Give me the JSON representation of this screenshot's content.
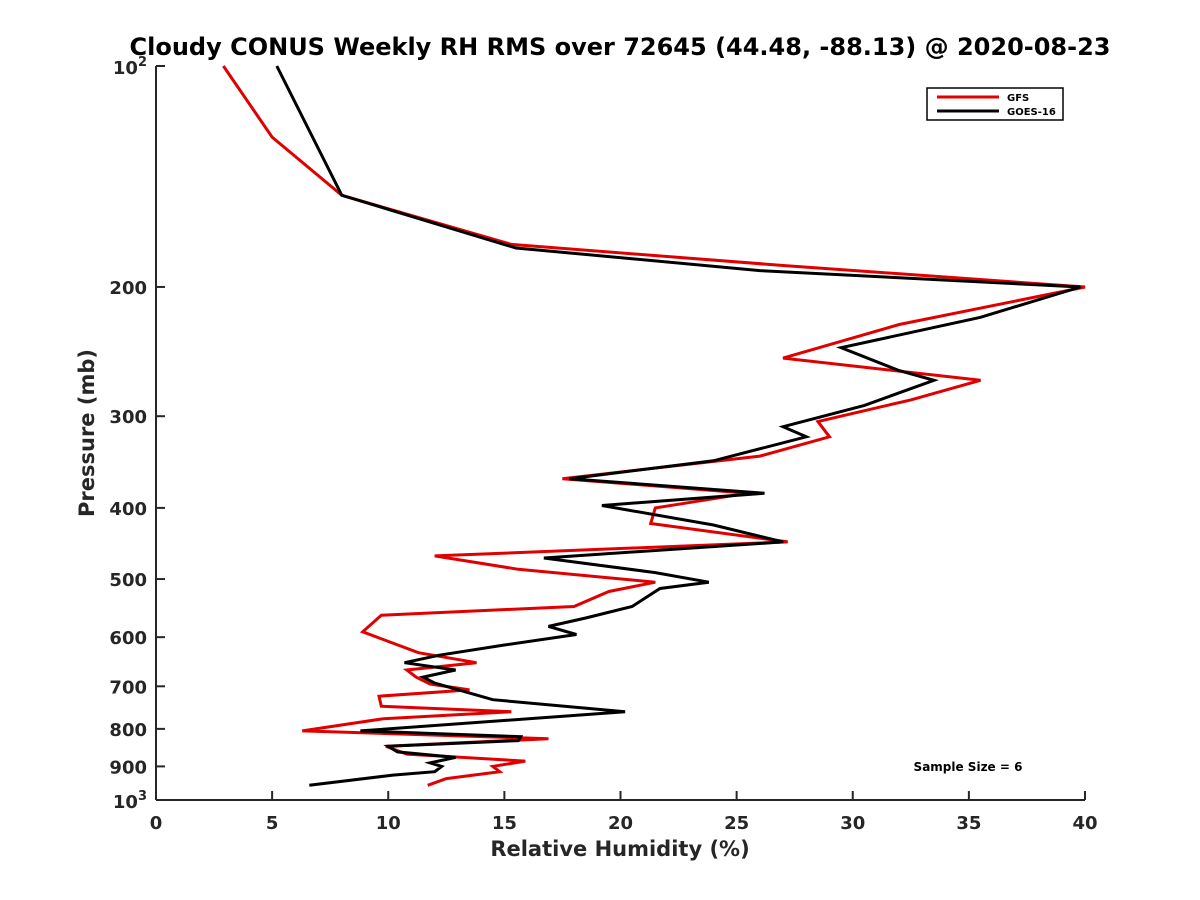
{
  "chart_data": {
    "type": "line",
    "title": "Cloudy CONUS Weekly RH RMS over 72645 (44.48, -88.13) @ 2020-08-23",
    "xlabel": "Relative Humidity (%)",
    "ylabel": "Pressure (mb)",
    "xlim": [
      0,
      40
    ],
    "ylim": [
      100,
      1000
    ],
    "y_scale": "log",
    "y_reversed": true,
    "x_ticks": [
      0,
      5,
      10,
      15,
      20,
      25,
      30,
      35,
      40
    ],
    "y_ticks": [
      {
        "value": 100,
        "base": "10",
        "exp": "2"
      },
      {
        "value": 200,
        "label": "200"
      },
      {
        "value": 300,
        "label": "300"
      },
      {
        "value": 400,
        "label": "400"
      },
      {
        "value": 500,
        "label": "500"
      },
      {
        "value": 600,
        "label": "600"
      },
      {
        "value": 700,
        "label": "700"
      },
      {
        "value": 800,
        "label": "800"
      },
      {
        "value": 900,
        "label": "900"
      },
      {
        "value": 1000,
        "base": "10",
        "exp": "3"
      }
    ],
    "grid": false,
    "legend_position": "top-right",
    "series": [
      {
        "name": "GFS",
        "color": "#e00000",
        "points": [
          [
            2.9,
            100
          ],
          [
            5.0,
            125
          ],
          [
            8.0,
            150
          ],
          [
            15.3,
            175
          ],
          [
            27.0,
            187
          ],
          [
            40.0,
            200
          ],
          [
            32.0,
            225
          ],
          [
            27.0,
            250
          ],
          [
            35.5,
            268
          ],
          [
            32.5,
            285
          ],
          [
            28.5,
            305
          ],
          [
            29.0,
            320
          ],
          [
            26.0,
            340
          ],
          [
            17.5,
            365
          ],
          [
            25.5,
            382
          ],
          [
            21.5,
            400
          ],
          [
            21.3,
            420
          ],
          [
            27.2,
            445
          ],
          [
            12.0,
            465
          ],
          [
            15.6,
            485
          ],
          [
            21.5,
            505
          ],
          [
            19.5,
            520
          ],
          [
            18.0,
            545
          ],
          [
            9.7,
            560
          ],
          [
            8.9,
            590
          ],
          [
            11.3,
            630
          ],
          [
            13.8,
            650
          ],
          [
            10.8,
            665
          ],
          [
            11.2,
            680
          ],
          [
            11.8,
            695
          ],
          [
            13.5,
            708
          ],
          [
            9.6,
            722
          ],
          [
            9.7,
            745
          ],
          [
            15.3,
            758
          ],
          [
            9.8,
            775
          ],
          [
            6.3,
            805
          ],
          [
            16.9,
            825
          ],
          [
            9.9,
            845
          ],
          [
            10.8,
            866
          ],
          [
            15.9,
            885
          ],
          [
            14.5,
            900
          ],
          [
            14.8,
            915
          ],
          [
            12.5,
            935
          ],
          [
            11.7,
            955
          ]
        ]
      },
      {
        "name": "GOES-16",
        "color": "#000000",
        "points": [
          [
            5.2,
            100
          ],
          [
            8.0,
            150
          ],
          [
            15.5,
            177
          ],
          [
            26.0,
            190
          ],
          [
            39.8,
            200
          ],
          [
            35.5,
            220
          ],
          [
            29.5,
            242
          ],
          [
            32.0,
            260
          ],
          [
            33.5,
            268
          ],
          [
            30.5,
            290
          ],
          [
            27.0,
            310
          ],
          [
            28.0,
            320
          ],
          [
            24.0,
            345
          ],
          [
            17.8,
            365
          ],
          [
            26.2,
            382
          ],
          [
            19.2,
            397
          ],
          [
            24.0,
            422
          ],
          [
            27.0,
            445
          ],
          [
            16.7,
            468
          ],
          [
            21.5,
            490
          ],
          [
            23.8,
            505
          ],
          [
            21.7,
            515
          ],
          [
            20.5,
            545
          ],
          [
            18.5,
            565
          ],
          [
            16.9,
            580
          ],
          [
            18.1,
            595
          ],
          [
            15.0,
            615
          ],
          [
            12.2,
            635
          ],
          [
            10.7,
            650
          ],
          [
            12.9,
            665
          ],
          [
            11.5,
            680
          ],
          [
            12.0,
            693
          ],
          [
            14.5,
            730
          ],
          [
            20.2,
            758
          ],
          [
            8.8,
            805
          ],
          [
            15.7,
            820
          ],
          [
            15.6,
            830
          ],
          [
            10.0,
            845
          ],
          [
            10.4,
            860
          ],
          [
            12.9,
            875
          ],
          [
            11.8,
            890
          ],
          [
            12.3,
            900
          ],
          [
            12.0,
            915
          ],
          [
            10.2,
            925
          ],
          [
            6.6,
            955
          ]
        ]
      }
    ],
    "annotations": [
      {
        "text": "Sample Size = 6"
      }
    ]
  }
}
